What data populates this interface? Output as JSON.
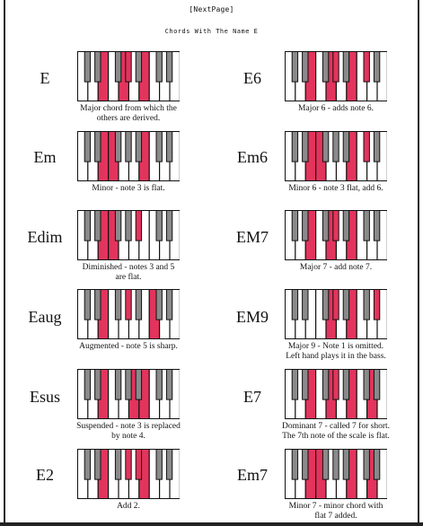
{
  "header": {
    "next_page": "[NextPage]",
    "title": "Chords With The Name E"
  },
  "colors": {
    "highlight": "#e2345c",
    "black_key": "#8a8a8a",
    "white_key": "#ffffff",
    "border": "#111111"
  },
  "chords": [
    {
      "name": "E",
      "caption_lines": [
        "Major chord from which the",
        "others are derived."
      ],
      "white_hl": [
        2,
        4,
        6
      ],
      "black_hl": [
        3
      ]
    },
    {
      "name": "E6",
      "caption_lines": [
        "Major 6 - adds note 6."
      ],
      "white_hl": [
        2,
        4,
        6
      ],
      "black_hl": [
        3,
        5
      ]
    },
    {
      "name": "Em",
      "caption_lines": [
        "Minor - note 3 is flat."
      ],
      "white_hl": [
        2,
        3,
        6
      ],
      "black_hl": []
    },
    {
      "name": "Em6",
      "caption_lines": [
        "Minor 6 - note 3 flat, add 6."
      ],
      "white_hl": [
        2,
        3,
        6
      ],
      "black_hl": [
        5
      ]
    },
    {
      "name": "Edim",
      "caption_lines": [
        "Diminished - notes 3 and 5",
        "are flat."
      ],
      "white_hl": [
        2,
        3
      ],
      "black_hl": [
        4
      ]
    },
    {
      "name": "EM7",
      "caption_lines": [
        "Major 7 - add note 7."
      ],
      "white_hl": [
        2,
        4,
        6
      ],
      "black_hl": [
        3,
        9
      ]
    },
    {
      "name": "Eaug",
      "caption_lines": [
        "Augmented - note 5 is sharp."
      ],
      "white_hl": [
        2,
        7
      ],
      "black_hl": [
        3
      ]
    },
    {
      "name": "EM9",
      "caption_lines": [
        "Major 9 - Note 1 is omitted.",
        "Left hand plays it in the bass."
      ],
      "white_hl": [
        4,
        6
      ],
      "black_hl": [
        3,
        6,
        9
      ]
    },
    {
      "name": "Esus",
      "caption_lines": [
        "Suspended - note 3 is replaced",
        "by note 4."
      ],
      "white_hl": [
        2,
        5,
        6
      ],
      "black_hl": []
    },
    {
      "name": "E7",
      "caption_lines": [
        "Dominant 7 - called 7 for short.",
        "The 7th note of the scale is flat."
      ],
      "white_hl": [
        2,
        4,
        6,
        8
      ],
      "black_hl": [
        3
      ]
    },
    {
      "name": "E2",
      "caption_lines": [
        "Add 2."
      ],
      "white_hl": [
        2,
        6
      ],
      "black_hl": [
        3,
        4
      ]
    },
    {
      "name": "Em7",
      "caption_lines": [
        "Minor 7 - minor chord with",
        "flat 7 added."
      ],
      "white_hl": [
        2,
        3,
        6,
        8
      ],
      "black_hl": []
    }
  ]
}
